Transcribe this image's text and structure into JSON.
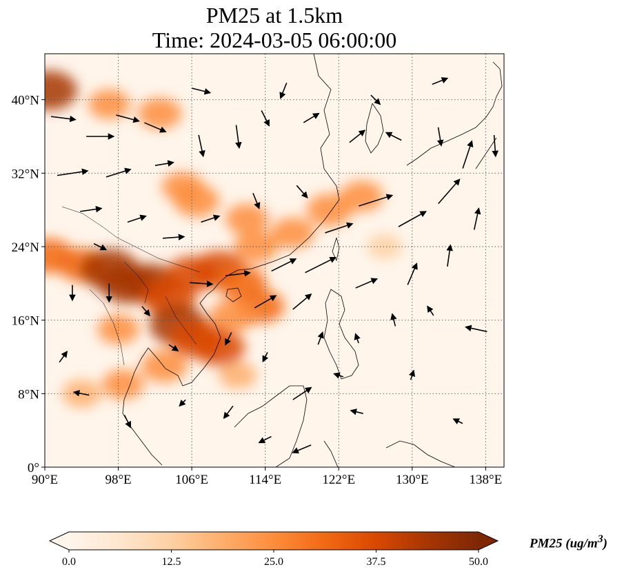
{
  "title": {
    "line1": "PM25 at 1.5km",
    "line2": "Time: 2024-03-05 06:00:00"
  },
  "map": {
    "extent": {
      "lon_min": 90,
      "lon_max": 140,
      "lat_min": 0,
      "lat_max": 45
    },
    "x_ticks": [
      {
        "lon": 90,
        "label": "90°E"
      },
      {
        "lon": 98,
        "label": "98°E"
      },
      {
        "lon": 106,
        "label": "106°E"
      },
      {
        "lon": 114,
        "label": "114°E"
      },
      {
        "lon": 122,
        "label": "122°E"
      },
      {
        "lon": 130,
        "label": "130°E"
      },
      {
        "lon": 138,
        "label": "138°E"
      }
    ],
    "y_ticks": [
      {
        "lat": 0,
        "label": "0°"
      },
      {
        "lat": 8,
        "label": "8°N"
      },
      {
        "lat": 16,
        "label": "16°N"
      },
      {
        "lat": 24,
        "label": "24°N"
      },
      {
        "lat": 32,
        "label": "32°N"
      },
      {
        "lat": 40,
        "label": "40°N"
      }
    ],
    "gridlines": true,
    "colors": {
      "background": "#fff5eb",
      "coast": "#000000",
      "grid": "#555555",
      "arrow": "#000000"
    },
    "pm25_hotspots": [
      {
        "lon": 90.5,
        "lat": 41.0,
        "value": 42
      },
      {
        "lon": 97.0,
        "lat": 39.5,
        "value": 22
      },
      {
        "lon": 102.5,
        "lat": 38.5,
        "value": 25
      },
      {
        "lon": 105.0,
        "lat": 30.5,
        "value": 22
      },
      {
        "lon": 106.5,
        "lat": 29.0,
        "value": 28
      },
      {
        "lon": 112.0,
        "lat": 27.0,
        "value": 24
      },
      {
        "lon": 113.0,
        "lat": 24.0,
        "value": 26
      },
      {
        "lon": 117.0,
        "lat": 25.5,
        "value": 24
      },
      {
        "lon": 121.0,
        "lat": 28.0,
        "value": 28
      },
      {
        "lon": 124.5,
        "lat": 29.5,
        "value": 24
      },
      {
        "lon": 90.5,
        "lat": 23.0,
        "value": 32
      },
      {
        "lon": 94.0,
        "lat": 22.0,
        "value": 30
      },
      {
        "lon": 97.0,
        "lat": 21.5,
        "value": 46
      },
      {
        "lon": 99.0,
        "lat": 20.0,
        "value": 44
      },
      {
        "lon": 101.5,
        "lat": 20.0,
        "value": 42
      },
      {
        "lon": 103.5,
        "lat": 18.5,
        "value": 40
      },
      {
        "lon": 106.0,
        "lat": 21.0,
        "value": 35
      },
      {
        "lon": 109.0,
        "lat": 21.5,
        "value": 38
      },
      {
        "lon": 111.5,
        "lat": 20.0,
        "value": 32
      },
      {
        "lon": 113.5,
        "lat": 17.5,
        "value": 30
      },
      {
        "lon": 104.5,
        "lat": 15.5,
        "value": 45
      },
      {
        "lon": 106.5,
        "lat": 14.0,
        "value": 40
      },
      {
        "lon": 109.0,
        "lat": 13.0,
        "value": 36
      },
      {
        "lon": 110.5,
        "lat": 16.5,
        "value": 28
      },
      {
        "lon": 103.0,
        "lat": 11.0,
        "value": 28
      },
      {
        "lon": 98.5,
        "lat": 9.0,
        "value": 22
      },
      {
        "lon": 94.0,
        "lat": 8.0,
        "value": 18
      },
      {
        "lon": 98.0,
        "lat": 15.0,
        "value": 22
      },
      {
        "lon": 111.0,
        "lat": 10.0,
        "value": 16
      },
      {
        "lon": 127.0,
        "lat": 24.0,
        "value": 12
      }
    ],
    "wind_vectors": [
      {
        "lon": 92,
        "lat": 38,
        "u": 1.6,
        "v": -0.2
      },
      {
        "lon": 96,
        "lat": 36,
        "u": 1.8,
        "v": 0.0
      },
      {
        "lon": 99,
        "lat": 38,
        "u": 1.5,
        "v": -0.4
      },
      {
        "lon": 102,
        "lat": 37,
        "u": 1.4,
        "v": -0.6
      },
      {
        "lon": 93,
        "lat": 32,
        "u": 2.0,
        "v": 0.3
      },
      {
        "lon": 98,
        "lat": 32,
        "u": 1.6,
        "v": 0.5
      },
      {
        "lon": 103,
        "lat": 33,
        "u": 1.2,
        "v": 0.2
      },
      {
        "lon": 107,
        "lat": 35,
        "u": 0.3,
        "v": -1.4
      },
      {
        "lon": 111,
        "lat": 36,
        "u": 0.2,
        "v": -1.5
      },
      {
        "lon": 114,
        "lat": 38,
        "u": 0.5,
        "v": -1.0
      },
      {
        "lon": 119,
        "lat": 38,
        "u": 1.0,
        "v": 0.6
      },
      {
        "lon": 124,
        "lat": 36,
        "u": 1.0,
        "v": 0.8
      },
      {
        "lon": 95,
        "lat": 28,
        "u": 1.4,
        "v": 0.2
      },
      {
        "lon": 100,
        "lat": 27,
        "u": 1.2,
        "v": 0.4
      },
      {
        "lon": 104,
        "lat": 25,
        "u": 1.4,
        "v": 0.1
      },
      {
        "lon": 108,
        "lat": 27,
        "u": 1.2,
        "v": 0.4
      },
      {
        "lon": 113,
        "lat": 29,
        "u": 0.4,
        "v": -1.0
      },
      {
        "lon": 118,
        "lat": 30,
        "u": 0.7,
        "v": -0.8
      },
      {
        "lon": 122,
        "lat": 26,
        "u": 1.8,
        "v": 0.6
      },
      {
        "lon": 126,
        "lat": 29,
        "u": 2.2,
        "v": 0.7
      },
      {
        "lon": 130,
        "lat": 27,
        "u": 1.8,
        "v": 1.0
      },
      {
        "lon": 134,
        "lat": 30,
        "u": 1.4,
        "v": 1.6
      },
      {
        "lon": 136,
        "lat": 34,
        "u": 0.6,
        "v": 1.8
      },
      {
        "lon": 139,
        "lat": 35,
        "u": 0.1,
        "v": -1.4
      },
      {
        "lon": 133,
        "lat": 36,
        "u": 0.2,
        "v": -1.2
      },
      {
        "lon": 128,
        "lat": 36,
        "u": -1.0,
        "v": 0.5
      },
      {
        "lon": 116,
        "lat": 22,
        "u": 1.6,
        "v": 0.8
      },
      {
        "lon": 120,
        "lat": 22,
        "u": 2.0,
        "v": 1.0
      },
      {
        "lon": 125,
        "lat": 20,
        "u": 1.4,
        "v": 0.6
      },
      {
        "lon": 130,
        "lat": 21,
        "u": 0.6,
        "v": 1.4
      },
      {
        "lon": 134,
        "lat": 23,
        "u": 0.2,
        "v": 1.4
      },
      {
        "lon": 137,
        "lat": 27,
        "u": 0.3,
        "v": 1.4
      },
      {
        "lon": 107,
        "lat": 20,
        "u": 1.5,
        "v": -0.1
      },
      {
        "lon": 111,
        "lat": 21,
        "u": 1.6,
        "v": 0.2
      },
      {
        "lon": 114,
        "lat": 18,
        "u": 1.4,
        "v": 0.8
      },
      {
        "lon": 118,
        "lat": 18,
        "u": 1.2,
        "v": 1.0
      },
      {
        "lon": 93,
        "lat": 19,
        "u": 0.0,
        "v": -1.0
      },
      {
        "lon": 97,
        "lat": 19,
        "u": 0.0,
        "v": -1.2
      },
      {
        "lon": 101,
        "lat": 17,
        "u": 0.5,
        "v": -0.6
      },
      {
        "lon": 104,
        "lat": 13,
        "u": 0.6,
        "v": -0.4
      },
      {
        "lon": 110,
        "lat": 14,
        "u": -0.4,
        "v": -0.8
      },
      {
        "lon": 114,
        "lat": 12,
        "u": -0.3,
        "v": -0.6
      },
      {
        "lon": 120,
        "lat": 14,
        "u": 0.3,
        "v": 0.8
      },
      {
        "lon": 124,
        "lat": 14,
        "u": -0.2,
        "v": 0.6
      },
      {
        "lon": 128,
        "lat": 16,
        "u": -0.2,
        "v": 0.8
      },
      {
        "lon": 132,
        "lat": 17,
        "u": -0.4,
        "v": 0.6
      },
      {
        "lon": 137,
        "lat": 15,
        "u": -1.4,
        "v": 0.3
      },
      {
        "lon": 118,
        "lat": 8,
        "u": 1.2,
        "v": 0.8
      },
      {
        "lon": 122,
        "lat": 10,
        "u": -0.6,
        "v": 0.2
      },
      {
        "lon": 110,
        "lat": 6,
        "u": -0.6,
        "v": -0.8
      },
      {
        "lon": 114,
        "lat": 3,
        "u": -0.8,
        "v": -0.4
      },
      {
        "lon": 118,
        "lat": 2,
        "u": -1.2,
        "v": -0.5
      },
      {
        "lon": 124,
        "lat": 6,
        "u": -0.8,
        "v": 0.2
      },
      {
        "lon": 94,
        "lat": 8,
        "u": -1.0,
        "v": 0.2
      },
      {
        "lon": 99,
        "lat": 5,
        "u": 0.4,
        "v": -0.8
      },
      {
        "lon": 105,
        "lat": 7,
        "u": -0.4,
        "v": -0.4
      },
      {
        "lon": 96,
        "lat": 24,
        "u": 0.8,
        "v": -0.4
      },
      {
        "lon": 92,
        "lat": 12,
        "u": 0.5,
        "v": 0.7
      },
      {
        "lon": 126,
        "lat": 40,
        "u": 0.6,
        "v": -0.6
      },
      {
        "lon": 133,
        "lat": 42,
        "u": 1.0,
        "v": 0.4
      },
      {
        "lon": 107,
        "lat": 41,
        "u": 1.2,
        "v": -0.3
      },
      {
        "lon": 116,
        "lat": 41,
        "u": -0.4,
        "v": -1.0
      },
      {
        "lon": 130,
        "lat": 10,
        "u": 0.2,
        "v": 0.6
      },
      {
        "lon": 135,
        "lat": 5,
        "u": -0.6,
        "v": 0.3
      }
    ]
  },
  "colorbar": {
    "min": 0.0,
    "max": 50.0,
    "ticks": [
      "0.0",
      "12.5",
      "25.0",
      "37.5",
      "50.0"
    ],
    "label": "PM25 (ug/m",
    "label_exponent": "3",
    "label_close": ")",
    "extend": "both",
    "colormap": [
      "#fff5eb",
      "#fee6ce",
      "#fdd0a2",
      "#fdae6b",
      "#fd8d3c",
      "#f16913",
      "#d94801",
      "#a63603",
      "#7f2704"
    ]
  },
  "chart_data": {
    "type": "heatmap",
    "title": "PM25 at 1.5km",
    "subtitle": "Time: 2024-03-05 06:00:00",
    "xlabel": "",
    "ylabel": "",
    "xlim": [
      90,
      140
    ],
    "ylim": [
      0,
      45
    ],
    "x_tick_labels": [
      "90°E",
      "98°E",
      "106°E",
      "114°E",
      "122°E",
      "130°E",
      "138°E"
    ],
    "y_tick_labels": [
      "0°",
      "8°N",
      "16°N",
      "24°N",
      "32°N",
      "40°N"
    ],
    "colorbar_range": [
      0.0,
      50.0
    ],
    "colorbar_ticks": [
      0.0,
      12.5,
      25.0,
      37.5,
      50.0
    ],
    "grid": true
  }
}
